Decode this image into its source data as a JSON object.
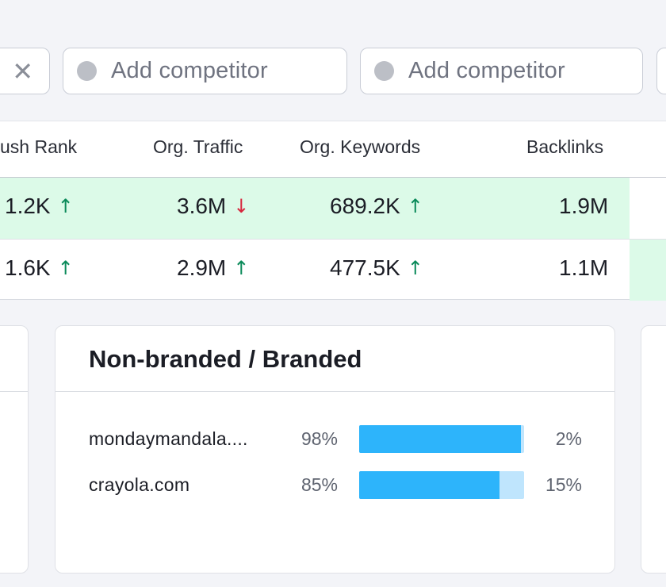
{
  "competitors": {
    "clear_icon": "close-icon",
    "inputs": [
      {
        "placeholder": "Add competitor"
      },
      {
        "placeholder": "Add competitor"
      }
    ]
  },
  "table": {
    "headers": {
      "rank": "ush Rank",
      "traffic": "Org. Traffic",
      "keywords": "Org. Keywords",
      "backlinks": "Backlinks"
    },
    "rows": [
      {
        "rank": "1.2K",
        "rank_trend": "↑",
        "traffic": "3.6M",
        "traffic_trend": "↓",
        "keywords": "689.2K",
        "keywords_trend": "↑",
        "backlinks": "1.9M"
      },
      {
        "rank": "1.6K",
        "rank_trend": "↑",
        "traffic": "2.9M",
        "traffic_trend": "↑",
        "keywords": "477.5K",
        "keywords_trend": "↑",
        "backlinks": "1.1M"
      }
    ]
  },
  "nonbranded": {
    "title": "Non-branded / Branded",
    "rows": [
      {
        "domain": "mondaymandala....",
        "nonbranded_label": "98%",
        "branded_label": "2%",
        "nonbranded_share": 0.98
      },
      {
        "domain": "crayola.com",
        "nonbranded_label": "85%",
        "branded_label": "15%",
        "nonbranded_share": 0.85
      }
    ]
  },
  "colors": {
    "highlight": "#dcfae8",
    "trend_up": "#0b8a5a",
    "trend_down": "#d7263d",
    "bar_nonbranded": "#2db4fb",
    "bar_branded": "#bfe5fd"
  }
}
